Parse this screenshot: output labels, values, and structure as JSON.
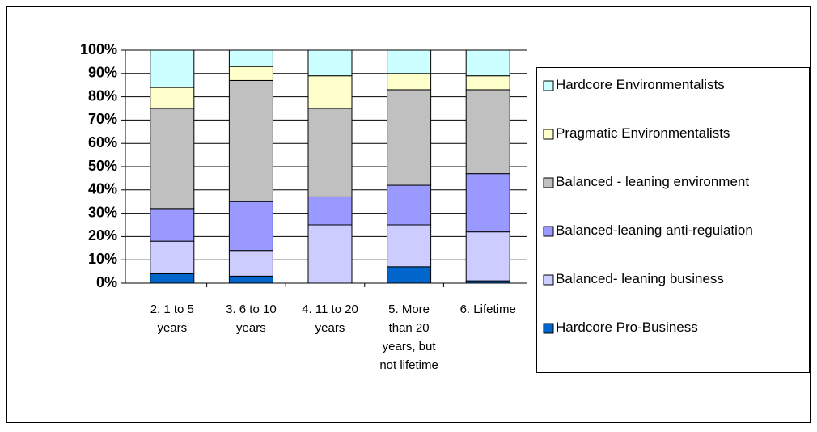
{
  "chart_data": {
    "type": "stacked_bar",
    "categories": [
      "2.  1 to 5 years",
      "3.  6 to 10 years",
      "4.  11 to 20 years",
      "5.  More than 20 years, but not lifetime",
      "6. Lifetime"
    ],
    "series": [
      {
        "name": "Hardcore Pro-Business",
        "color": "#0066cc",
        "values": [
          4,
          3,
          0,
          7,
          1
        ]
      },
      {
        "name": "Balanced- leaning business",
        "color": "#ccccff",
        "values": [
          14,
          11,
          25,
          18,
          21
        ]
      },
      {
        "name": "Balanced-leaning anti-regulation",
        "color": "#9999ff",
        "values": [
          14,
          21,
          12,
          17,
          25
        ]
      },
      {
        "name": "Balanced - leaning environment",
        "color": "#c0c0c0",
        "values": [
          43,
          52,
          38,
          41,
          36
        ]
      },
      {
        "name": "Pragmatic Environmentalists",
        "color": "#ffffcc",
        "values": [
          9,
          6,
          14,
          7,
          6
        ]
      },
      {
        "name": "Hardcore Environmentalists",
        "color": "#ccffff",
        "values": [
          16,
          7,
          11,
          10,
          11
        ]
      }
    ],
    "ylim": [
      0,
      100
    ],
    "yticks": [
      {
        "value": 0,
        "label": "0%"
      },
      {
        "value": 10,
        "label": "10%"
      },
      {
        "value": 20,
        "label": "20%"
      },
      {
        "value": 30,
        "label": "30%"
      },
      {
        "value": 40,
        "label": "40%"
      },
      {
        "value": 50,
        "label": "50%"
      },
      {
        "value": 60,
        "label": "60%"
      },
      {
        "value": 70,
        "label": "70%"
      },
      {
        "value": 80,
        "label": "80%"
      },
      {
        "value": 90,
        "label": "90%"
      },
      {
        "value": 100,
        "label": "100%"
      }
    ],
    "grid": true
  }
}
